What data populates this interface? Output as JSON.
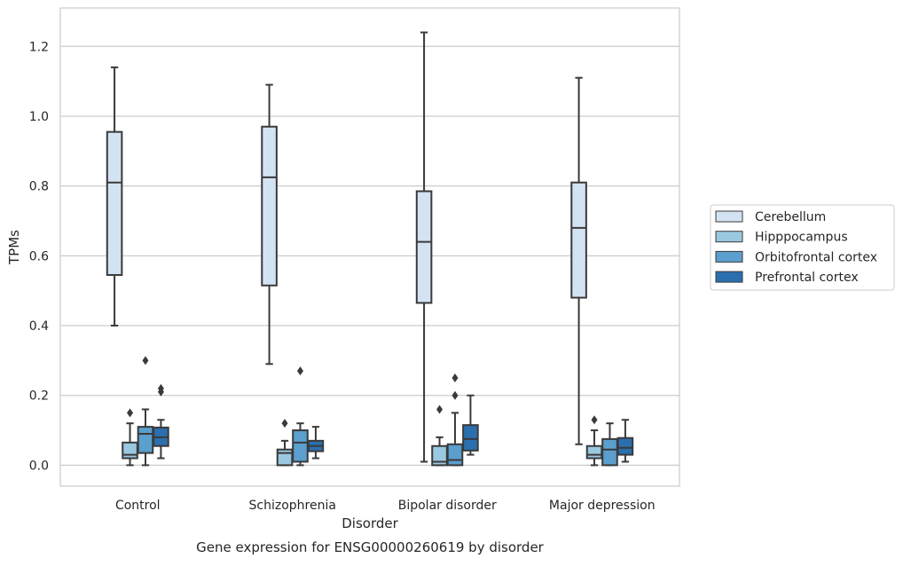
{
  "chart_data": {
    "type": "boxplot",
    "title": "Gene expression for ENSG00000260619 by disorder",
    "xlabel": "Disorder",
    "ylabel": "TPMs",
    "ylim": [
      -0.06,
      1.31
    ],
    "yticks": [
      "0.0",
      "0.2",
      "0.4",
      "0.6",
      "0.8",
      "1.0",
      "1.2"
    ],
    "grid": "horizontal",
    "legend_position": "right",
    "categories": [
      "Control",
      "Schizophrenia",
      "Bipolar disorder",
      "Major depression"
    ],
    "series": [
      {
        "name": "Cerebellum",
        "color": "#d3e3f3",
        "boxes": [
          {
            "whislo": 0.4,
            "q1": 0.545,
            "med": 0.81,
            "q3": 0.955,
            "whishi": 1.14,
            "fliers": []
          },
          {
            "whislo": 0.29,
            "q1": 0.515,
            "med": 0.825,
            "q3": 0.97,
            "whishi": 1.09,
            "fliers": []
          },
          {
            "whislo": 0.01,
            "q1": 0.465,
            "med": 0.64,
            "q3": 0.785,
            "whishi": 1.24,
            "fliers": []
          },
          {
            "whislo": 0.06,
            "q1": 0.48,
            "med": 0.68,
            "q3": 0.81,
            "whishi": 1.11,
            "fliers": []
          }
        ]
      },
      {
        "name": "Hipppocampus",
        "color": "#9ac8e0",
        "boxes": [
          {
            "whislo": 0.0,
            "q1": 0.02,
            "med": 0.03,
            "q3": 0.065,
            "whishi": 0.12,
            "fliers": [
              0.15
            ]
          },
          {
            "whislo": 0.0,
            "q1": 0.0,
            "med": 0.035,
            "q3": 0.045,
            "whishi": 0.07,
            "fliers": [
              0.12
            ]
          },
          {
            "whislo": 0.0,
            "q1": 0.0,
            "med": 0.01,
            "q3": 0.055,
            "whishi": 0.08,
            "fliers": [
              0.16
            ]
          },
          {
            "whislo": 0.0,
            "q1": 0.02,
            "med": 0.03,
            "q3": 0.055,
            "whishi": 0.1,
            "fliers": [
              0.13
            ]
          }
        ]
      },
      {
        "name": "Orbitofrontal cortex",
        "color": "#5a9fcd",
        "boxes": [
          {
            "whislo": 0.0,
            "q1": 0.035,
            "med": 0.09,
            "q3": 0.11,
            "whishi": 0.16,
            "fliers": [
              0.3
            ]
          },
          {
            "whislo": 0.0,
            "q1": 0.01,
            "med": 0.065,
            "q3": 0.1,
            "whishi": 0.12,
            "fliers": [
              0.27
            ]
          },
          {
            "whislo": 0.0,
            "q1": 0.0,
            "med": 0.015,
            "q3": 0.06,
            "whishi": 0.15,
            "fliers": [
              0.2,
              0.25
            ]
          },
          {
            "whislo": 0.0,
            "q1": 0.0,
            "med": 0.045,
            "q3": 0.075,
            "whishi": 0.12,
            "fliers": []
          }
        ]
      },
      {
        "name": "Prefrontal cortex",
        "color": "#2b6fae",
        "boxes": [
          {
            "whislo": 0.02,
            "q1": 0.055,
            "med": 0.08,
            "q3": 0.108,
            "whishi": 0.13,
            "fliers": [
              0.21,
              0.22
            ]
          },
          {
            "whislo": 0.02,
            "q1": 0.04,
            "med": 0.055,
            "q3": 0.07,
            "whishi": 0.11,
            "fliers": []
          },
          {
            "whislo": 0.03,
            "q1": 0.042,
            "med": 0.075,
            "q3": 0.115,
            "whishi": 0.2,
            "fliers": []
          },
          {
            "whislo": 0.01,
            "q1": 0.03,
            "med": 0.05,
            "q3": 0.078,
            "whishi": 0.13,
            "fliers": []
          }
        ]
      }
    ]
  }
}
